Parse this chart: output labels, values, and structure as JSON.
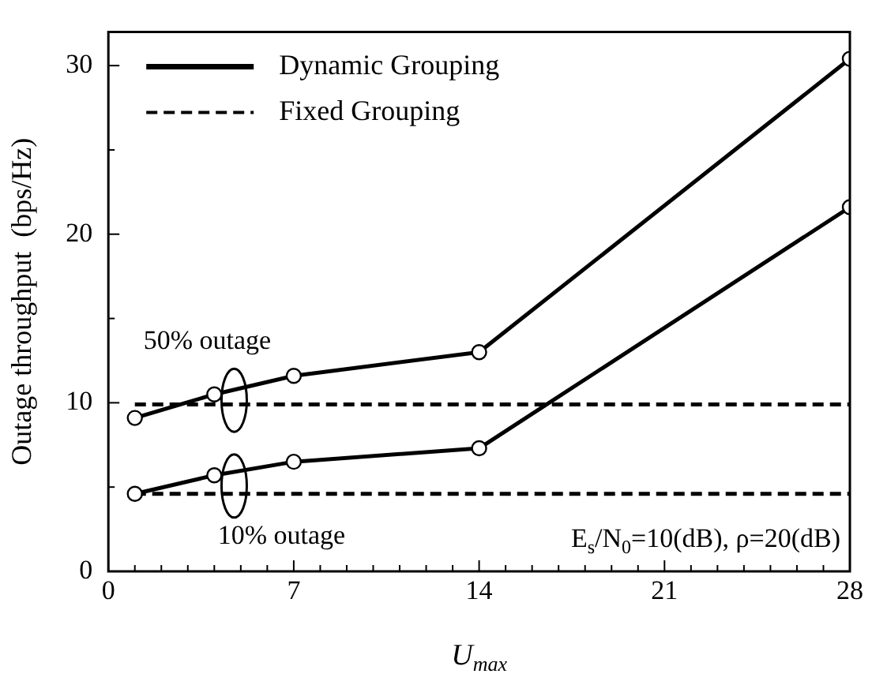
{
  "chart_data": {
    "type": "line",
    "xlabel": "U$_{max}$",
    "ylabel": "Outage throughput  (bps/Hz)",
    "xlim": [
      0,
      28
    ],
    "xticks": [
      0,
      7,
      14,
      21,
      28
    ],
    "ylim": [
      0,
      32
    ],
    "yticks": [
      0,
      10,
      20,
      30
    ],
    "grid": false,
    "legend": "top left",
    "series": [
      {
        "name": "Dynamic Grouping",
        "color": "#000000",
        "x": [
          1,
          4,
          7,
          14,
          28
        ],
        "values": [
          9.1,
          10.5,
          11.6,
          13.0,
          30.4
        ],
        "marker": "circle",
        "line_style": "solid"
      },
      {
        "color": "#000000",
        "x": [
          1,
          4,
          7,
          14,
          28
        ],
        "values": [
          4.6,
          5.7,
          6.5,
          7.3,
          21.6
        ],
        "marker": "circle",
        "line_style": "solid"
      },
      {
        "name": "Fixed Grouping",
        "color": "#000000",
        "x": [
          1,
          28
        ],
        "values": [
          9.9,
          9.9
        ],
        "marker": "none",
        "line_style": "dashed"
      },
      {
        "color": "#000000",
        "x": [
          1,
          28
        ],
        "values": [
          4.6,
          4.6
        ],
        "marker": "none",
        "line_style": "dashed"
      }
    ],
    "annotations": [
      "50% outage",
      "10% outage",
      "E$_{s}$/N$_{0}$=10(dB), ρ=20(dB)"
    ]
  }
}
